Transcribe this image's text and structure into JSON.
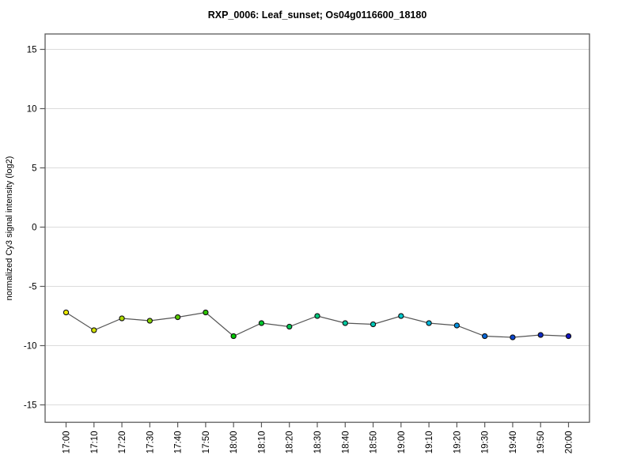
{
  "chart_data": {
    "type": "line",
    "title": "RXP_0006: Leaf_sunset; Os04g0116600_18180",
    "ylabel": "normalized Cy3 signal intensity (log2)",
    "xlabel": "",
    "categories": [
      "17:00",
      "17:10",
      "17:20",
      "17:30",
      "17:40",
      "17:50",
      "18:00",
      "18:10",
      "18:20",
      "18:30",
      "18:40",
      "18:50",
      "19:00",
      "19:10",
      "19:20",
      "19:30",
      "19:40",
      "19:50",
      "20:00"
    ],
    "values": [
      -7.2,
      -8.7,
      -7.7,
      -7.9,
      -7.6,
      -7.2,
      -9.2,
      -8.1,
      -8.4,
      -7.5,
      -8.1,
      -8.2,
      -7.5,
      -8.1,
      -8.3,
      -9.2,
      -9.3,
      -9.1,
      -9.2
    ],
    "point_colors": [
      "#edea00",
      "#d3e200",
      "#aeda00",
      "#86d200",
      "#58ca00",
      "#2bc600",
      "#00c800",
      "#00c82d",
      "#00c855",
      "#00c87d",
      "#00c89e",
      "#00c8b8",
      "#00c8cc",
      "#00b6da",
      "#0493e2",
      "#0767da",
      "#0a46d0",
      "#0d2ac6",
      "#1113c0"
    ],
    "yticks": [
      15,
      10,
      5,
      0,
      -5,
      -10,
      -15
    ],
    "ylim": [
      -16.4,
      16.3
    ],
    "grid": "horizontal",
    "legend": "none",
    "line_color": "#555555",
    "point_border_color": "#111111",
    "grid_color": "#dcdcdc",
    "axis_color": "#5a5a5a",
    "text_color": "#000000",
    "background": "#ffffff"
  }
}
